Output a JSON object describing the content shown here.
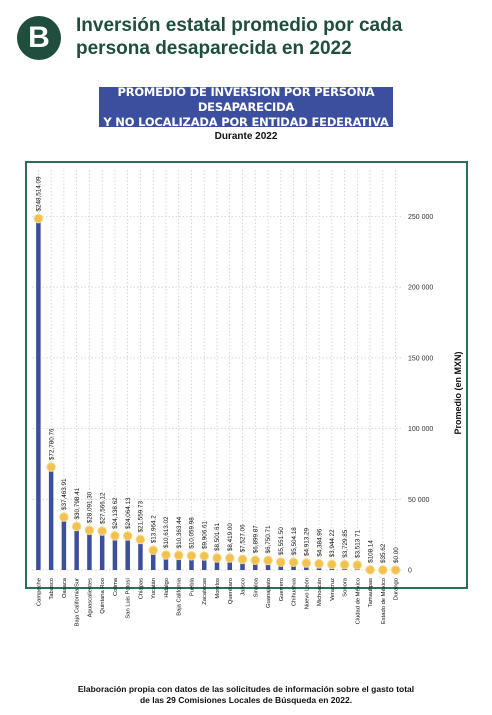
{
  "header": {
    "badge_letter": "B",
    "title": "Inversión estatal promedio por cada persona desaparecida en 2022"
  },
  "banner": {
    "line1": "PROMEDIO DE INVERSIÓN POR PERSONA DESAPARECIDA",
    "line2": "Y NO LOCALIZADA POR ENTIDAD FEDERATIVA"
  },
  "subtitle": "Durante 2022",
  "footer": {
    "line1": "Elaboración propia con datos de las solicitudes de información sobre el gasto total",
    "line2": "de las 29 Comisiones Locales de Búsqueda en 2022."
  },
  "colors": {
    "bar": "#3c4f9e",
    "marker": "#f2c14e",
    "title": "#1f4e3d",
    "frame": "#2b6e5a"
  },
  "chart_data": {
    "type": "bar",
    "ylabel": "Promedio (en MXN)",
    "ylim": [
      0,
      280000
    ],
    "yticks": [
      0,
      50000,
      100000,
      150000,
      200000,
      250000
    ],
    "ytick_labels": [
      "0",
      "50 000",
      "100 000",
      "150 000",
      "200 000",
      "250 000"
    ],
    "grid": true,
    "categories": [
      "Campeche",
      "Tabasco",
      "Oaxaca",
      "Baja California Sur",
      "Aguascalientes",
      "Quintana Roo",
      "Colima",
      "San Luis Potosí",
      "Chiapas",
      "Yucatán",
      "Hidalgo",
      "Baja California",
      "Puebla",
      "Zacatecas",
      "Morelos",
      "Querétaro",
      "Jalisco",
      "Sinaloa",
      "Guanajuato",
      "Guerrero",
      "Chihuahua",
      "Nuevo León",
      "Michoacán",
      "Veracruz",
      "Sonora",
      "Ciudad de México",
      "Tamaulipas",
      "Estado de México",
      "Durango"
    ],
    "values": [
      248514.09,
      72780.76,
      37463.91,
      30798.41,
      28091.3,
      27566.12,
      24138.62,
      24064.13,
      21559.73,
      13964.2,
      10613.02,
      10363.44,
      10059.98,
      9906.61,
      8501.61,
      8419.0,
      7527.06,
      6899.87,
      6750.71,
      5551.5,
      5504.18,
      4913.29,
      4384.96,
      3944.22,
      3729.85,
      3513.71,
      108.14,
      35.62,
      0.0
    ],
    "value_labels": [
      "$248,514.09",
      "$72,780.76",
      "$37,463.91",
      "$30,798.41",
      "$28,091.30",
      "$27,566.12",
      "$24,138.62",
      "$24,064.13",
      "$21,559.73",
      "$13,964.2",
      "$10,613.02",
      "$10,363.44",
      "$10,059.98",
      "$9,906.61",
      "$8,501.61",
      "$8,419.00",
      "$7,527.06",
      "$6,899.87",
      "$6,750.71",
      "$5,551.50",
      "$5,504.18",
      "$4,913.29",
      "$4,384.96",
      "$3,944.22",
      "$3,729.85",
      "$3,513.71",
      "$108.14",
      "$35.62",
      "$0.00"
    ]
  }
}
